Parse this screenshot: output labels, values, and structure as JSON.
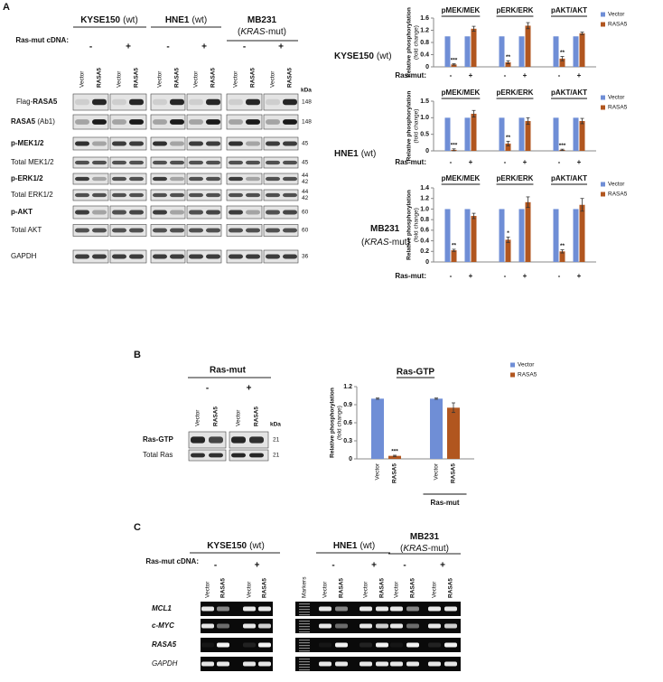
{
  "panel_labels": [
    "A",
    "B",
    "C"
  ],
  "cell_lines": [
    {
      "name": "KYSE150",
      "status": [
        "(wt)"
      ]
    },
    {
      "name": "HNE1",
      "status": [
        "(wt)"
      ]
    },
    {
      "name": "MB231",
      "status": [
        "(",
        "KRAS",
        "-mut)"
      ]
    }
  ],
  "blot_a": {
    "cdna_label": "Ras-mut cDNA:",
    "conditions": [
      "-",
      "+"
    ],
    "lanes": [
      "Vector",
      "RASA5"
    ],
    "kda_label": "kDa",
    "rows": [
      {
        "label": [
          "Flag-",
          "RASA5"
        ],
        "bold": [
          false,
          true
        ],
        "kda": [
          148
        ]
      },
      {
        "label": [
          "RASA5",
          " (Ab1)"
        ],
        "bold": [
          true,
          false
        ],
        "kda": [
          148
        ]
      },
      {
        "label": [
          "p-MEK1/2"
        ],
        "bold": [
          true
        ],
        "kda": [
          45
        ]
      },
      {
        "label": [
          "Total MEK1/2"
        ],
        "bold": [
          false
        ],
        "kda": [
          45
        ]
      },
      {
        "label": [
          "p-ERK1/2"
        ],
        "bold": [
          true
        ],
        "kda": [
          44,
          42
        ]
      },
      {
        "label": [
          "Total ERK1/2"
        ],
        "bold": [
          false
        ],
        "kda": [
          44,
          42
        ]
      },
      {
        "label": [
          "p-AKT"
        ],
        "bold": [
          true
        ],
        "kda": [
          60
        ]
      },
      {
        "label": [
          "Total AKT"
        ],
        "bold": [
          false
        ],
        "kda": [
          60
        ]
      },
      {
        "label": [
          "GAPDH"
        ],
        "bold": [
          false
        ],
        "kda": [
          36
        ]
      }
    ]
  },
  "blot_b": {
    "header": "Ras-mut",
    "conditions": [
      "-",
      "+"
    ],
    "lanes": [
      "Vector",
      "RASA5"
    ],
    "kda_label": "kDa",
    "rows": [
      {
        "label": "Ras-GTP",
        "bold": true,
        "kda": [
          21
        ]
      },
      {
        "label": "Total Ras",
        "bold": false,
        "kda": [
          21
        ]
      }
    ]
  },
  "gel_c": {
    "cdna_label": "Ras-mut cDNA:",
    "conditions": [
      "-",
      "+"
    ],
    "lanes": [
      "Vector",
      "RASA5"
    ],
    "markers": "Markers",
    "rows": [
      {
        "label": "MCL1",
        "bold": true
      },
      {
        "label": "c-MYC",
        "bold": true
      },
      {
        "label": "RASA5",
        "bold": true
      },
      {
        "label": "GAPDH",
        "bold": false
      }
    ]
  },
  "chart_data": [
    {
      "type": "bar",
      "title": "KYSE150",
      "subtitle": [
        "(wt)"
      ],
      "groups": [
        "pMEK/MEK",
        "pERK/ERK",
        "pAKT/AKT"
      ],
      "categories": [
        "-",
        "+",
        "-",
        "+",
        "-",
        "+"
      ],
      "x_label": "Ras-mut:",
      "ylabel": [
        "Relative phosphorylation",
        "(fold change)"
      ],
      "ylim": [
        0,
        1.6
      ],
      "yticks": [
        0,
        0.4,
        0.8,
        1.2,
        1.6
      ],
      "series": [
        {
          "name": "Vector",
          "color": "#6f8ed6",
          "values": [
            1,
            1,
            1,
            1,
            1,
            1
          ]
        },
        {
          "name": "RASA5",
          "color": "#b1561f",
          "values": [
            0.08,
            1.25,
            0.15,
            1.35,
            0.27,
            1.1
          ],
          "errors": [
            0.02,
            0.08,
            0.05,
            0.1,
            0.07,
            0.04
          ]
        }
      ],
      "annotations": [
        "***",
        null,
        "**",
        null,
        "**",
        null
      ],
      "legend": "upper right"
    },
    {
      "type": "bar",
      "title": "HNE1",
      "subtitle": [
        "(wt)"
      ],
      "groups": [
        "pMEK/MEK",
        "pERK/ERK",
        "pAKT/AKT"
      ],
      "categories": [
        "-",
        "+",
        "-",
        "+",
        "-",
        "+"
      ],
      "x_label": "Ras-mut:",
      "ylabel": [
        "Relative phosphorylation",
        "(fold change)"
      ],
      "ylim": [
        0,
        1.5
      ],
      "yticks": [
        0,
        0.5,
        {
          "value": 1,
          "label": "1.0"
        },
        1.5
      ],
      "series": [
        {
          "name": "Vector",
          "color": "#6f8ed6",
          "values": [
            1,
            1,
            1,
            1,
            1,
            1
          ]
        },
        {
          "name": "RASA5",
          "color": "#b1561f",
          "values": [
            0.03,
            1.12,
            0.22,
            0.9,
            0.03,
            0.9
          ],
          "errors": [
            0.03,
            0.1,
            0.07,
            0.1,
            0.02,
            0.08
          ]
        }
      ],
      "annotations": [
        "***",
        null,
        "**",
        null,
        "***",
        null
      ],
      "legend": "upper right"
    },
    {
      "type": "bar",
      "title": "MB231",
      "subtitle": [
        "(",
        "KRAS",
        "-mut)"
      ],
      "groups": [
        "pMEK/MEK",
        "pERK/ERK",
        "pAKT/AKT"
      ],
      "categories": [
        "-",
        "+",
        "-",
        "+",
        "-",
        "+"
      ],
      "x_label": "Ras-mut:",
      "ylabel": [
        "Relative phosphorylation",
        "(fold change)"
      ],
      "ylim": [
        0,
        1.4
      ],
      "yticks": [
        0,
        0.2,
        0.4,
        0.6,
        0.8,
        {
          "value": 1,
          "label": "1.0"
        },
        1.2,
        1.4
      ],
      "series": [
        {
          "name": "Vector",
          "color": "#6f8ed6",
          "values": [
            1,
            1,
            1,
            1,
            1,
            1
          ]
        },
        {
          "name": "RASA5",
          "color": "#b1561f",
          "values": [
            0.22,
            0.87,
            0.42,
            1.13,
            0.2,
            1.08
          ],
          "errors": [
            0.02,
            0.05,
            0.05,
            0.1,
            0.03,
            0.12
          ]
        }
      ],
      "annotations": [
        "**",
        null,
        "*",
        null,
        "**",
        null
      ],
      "legend": "upper right"
    },
    {
      "type": "bar",
      "title": "Ras-GTP",
      "groups": [
        null,
        "Ras-mut"
      ],
      "categories": [
        "Vector",
        "RASA5",
        "Vector",
        "RASA5"
      ],
      "ylabel": [
        "Relative phosphorylation",
        "(fold change)"
      ],
      "ylim": [
        0,
        1.2
      ],
      "yticks": [
        0,
        0.3,
        0.6,
        0.9,
        1.2
      ],
      "series": [
        {
          "name": "Vector",
          "color": "#6f8ed6",
          "values": [
            1,
            null,
            1,
            null
          ],
          "errors": [
            0.01,
            null,
            0.01,
            null
          ]
        },
        {
          "name": "RASA5",
          "color": "#b1561f",
          "values": [
            null,
            0.05,
            null,
            0.85
          ],
          "errors": [
            null,
            0.01,
            null,
            0.08
          ]
        }
      ],
      "annotations": [
        null,
        "***",
        null,
        null
      ],
      "legend": "upper right"
    }
  ]
}
